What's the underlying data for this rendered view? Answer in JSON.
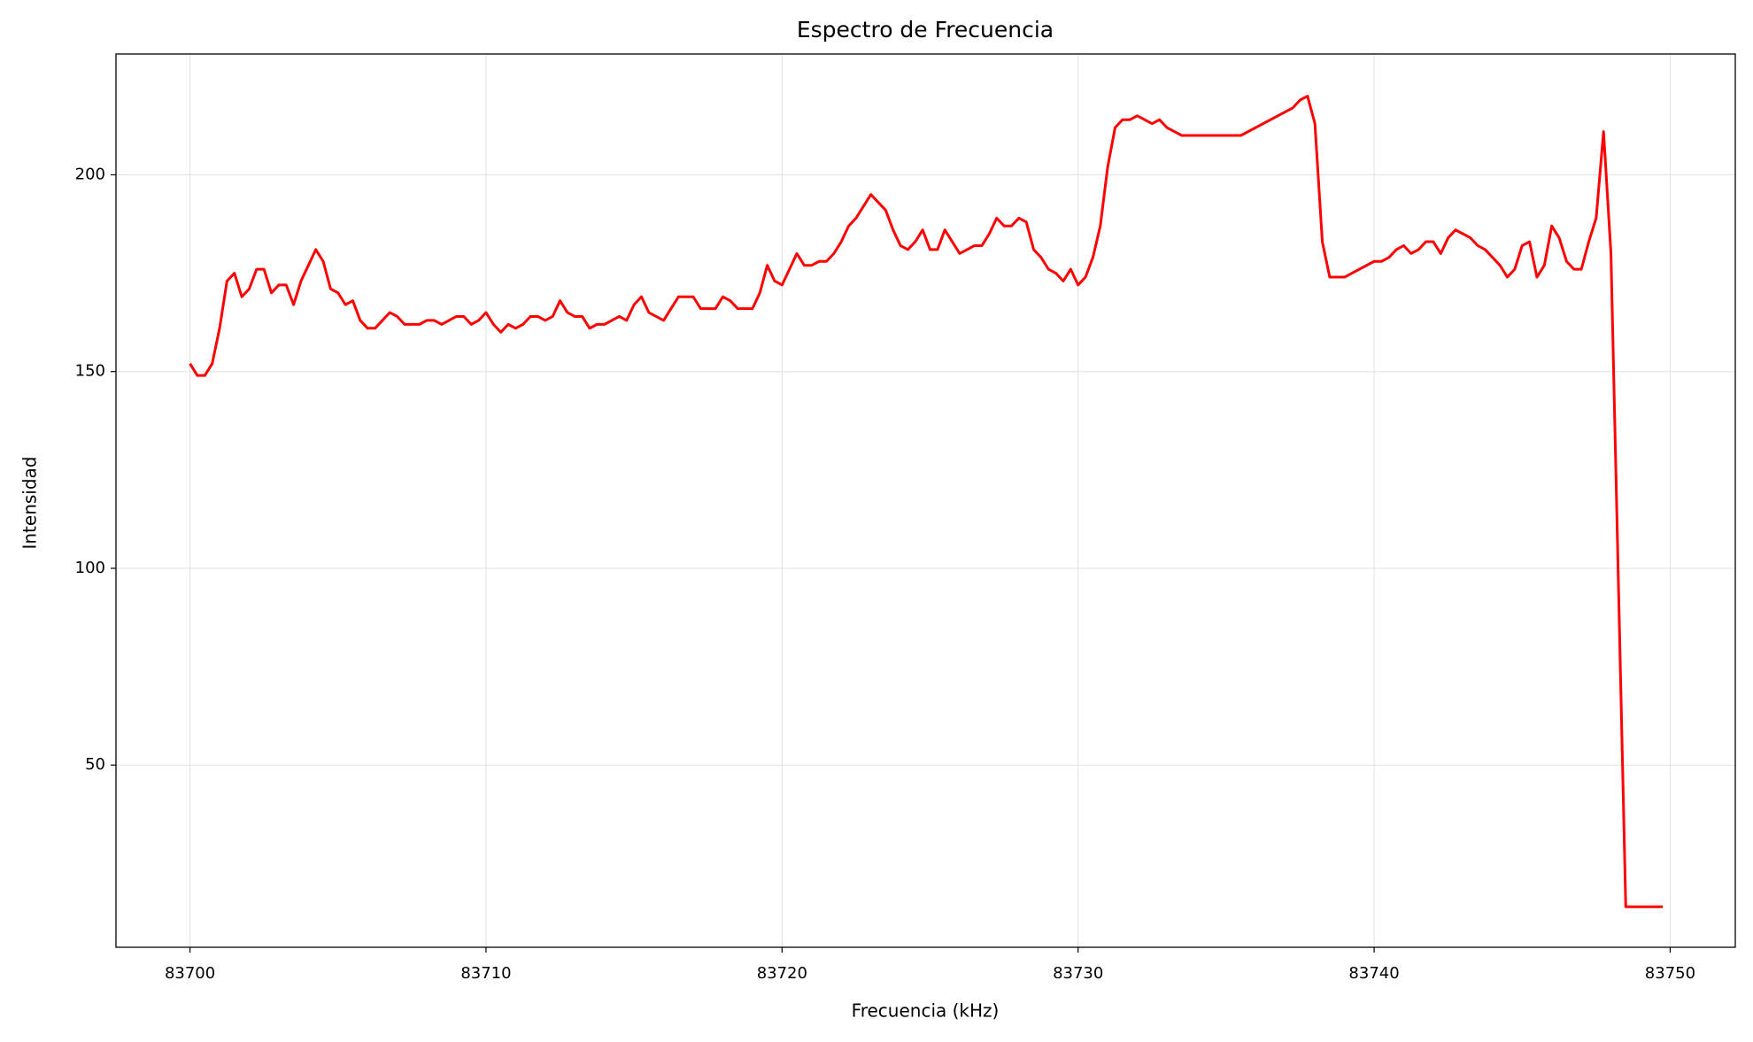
{
  "chart_data": {
    "type": "line",
    "title": "Espectro de Frecuencia",
    "x_label": "Frecuencia (kHz)",
    "y_label": "Intensidad",
    "xlim": [
      83697.5,
      83752.2
    ],
    "ylim": [
      3.7,
      230.7
    ],
    "xticks": [
      83700,
      83710,
      83720,
      83730,
      83740,
      83750
    ],
    "yticks": [
      50,
      100,
      150,
      200
    ],
    "grid": true,
    "series": [
      {
        "color": "#ff0000",
        "x": [
          83700,
          83700.25,
          83700.5,
          83700.75,
          83701,
          83701.25,
          83701.5,
          83701.75,
          83702,
          83702.25,
          83702.5,
          83702.75,
          83703,
          83703.25,
          83703.5,
          83703.75,
          83704,
          83704.25,
          83704.5,
          83704.75,
          83705,
          83705.25,
          83705.5,
          83705.75,
          83706,
          83706.25,
          83706.5,
          83706.75,
          83707,
          83707.25,
          83707.5,
          83707.75,
          83708,
          83708.25,
          83708.5,
          83708.75,
          83709,
          83709.25,
          83709.5,
          83709.75,
          83710,
          83710.25,
          83710.5,
          83710.75,
          83711,
          83711.25,
          83711.5,
          83711.75,
          83712,
          83712.25,
          83712.5,
          83712.75,
          83713,
          83713.25,
          83713.5,
          83713.75,
          83714,
          83714.25,
          83714.5,
          83714.75,
          83715,
          83715.25,
          83715.5,
          83716,
          83716.5,
          83717,
          83717.25,
          83717.75,
          83718,
          83718.25,
          83718.5,
          83719,
          83719.25,
          83719.5,
          83719.75,
          83720,
          83720.25,
          83720.5,
          83720.75,
          83721,
          83721.25,
          83721.5,
          83721.75,
          83722,
          83722.25,
          83722.5,
          83722.75,
          83723,
          83723.25,
          83723.5,
          83723.75,
          83724,
          83724.25,
          83724.5,
          83724.75,
          83725,
          83725.25,
          83725.5,
          83725.75,
          83726,
          83726.25,
          83726.5,
          83726.75,
          83727,
          83727.25,
          83727.5,
          83727.75,
          83728,
          83728.25,
          83728.5,
          83728.75,
          83729,
          83729.25,
          83729.5,
          83729.75,
          83730,
          83730.25,
          83730.5,
          83730.75,
          83731,
          83731.25,
          83731.5,
          83731.75,
          83732,
          83732.25,
          83732.5,
          83732.75,
          83733,
          83733.25,
          83733.5,
          83735.5,
          83737.25,
          83737.5,
          83737.75,
          83738,
          83738.25,
          83738.5,
          83739,
          83740,
          83740.25,
          83740.5,
          83740.75,
          83741,
          83741.25,
          83741.5,
          83741.75,
          83742,
          83742.25,
          83742.5,
          83742.75,
          83743,
          83743.25,
          83743.5,
          83743.75,
          83744,
          83744.25,
          83744.5,
          83744.75,
          83745,
          83745.25,
          83745.5,
          83745.75,
          83746,
          83746.25,
          83746.5,
          83746.75,
          83747,
          83747.25,
          83747.5,
          83747.75,
          83748,
          83748.5,
          83749.75
        ],
        "values": [
          152,
          149,
          149,
          152,
          161,
          173,
          175,
          169,
          171,
          176,
          176,
          170,
          172,
          172,
          167,
          173,
          177,
          181,
          178,
          171,
          170,
          167,
          168,
          163,
          161,
          161,
          163,
          165,
          164,
          162,
          162,
          162,
          163,
          163,
          162,
          163,
          164,
          164,
          162,
          163,
          165,
          162,
          160,
          162,
          161,
          162,
          164,
          164,
          163,
          164,
          168,
          165,
          164,
          164,
          161,
          162,
          162,
          163,
          164,
          163,
          167,
          169,
          165,
          163,
          169,
          169,
          166,
          166,
          169,
          168,
          166,
          166,
          170,
          177,
          173,
          172,
          176,
          180,
          177,
          177,
          178,
          178,
          180,
          183,
          187,
          189,
          192,
          195,
          193,
          191,
          186,
          182,
          181,
          183,
          186,
          181,
          181,
          186,
          183,
          180,
          181,
          182,
          182,
          185,
          189,
          187,
          187,
          189,
          188,
          181,
          179,
          176,
          175,
          173,
          176,
          172,
          174,
          179,
          187,
          202,
          212,
          214,
          214,
          215,
          214,
          213,
          214,
          212,
          211,
          210,
          210,
          217,
          219,
          220,
          213,
          183,
          174,
          174,
          178,
          178,
          179,
          181,
          182,
          180,
          181,
          183,
          183,
          180,
          184,
          186,
          185,
          184,
          182,
          181,
          179,
          177,
          174,
          176,
          182,
          183,
          174,
          177,
          187,
          184,
          178,
          176,
          176,
          183,
          189,
          211,
          180,
          14,
          14
        ]
      }
    ]
  }
}
